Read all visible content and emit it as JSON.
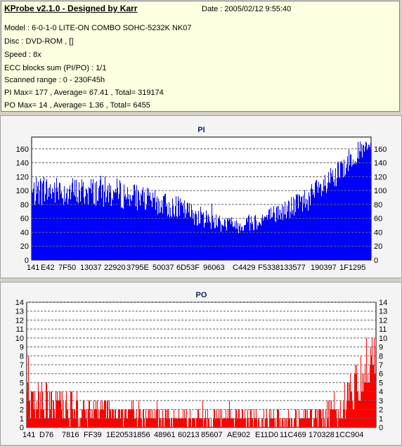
{
  "header": {
    "title": "KProbe v2.1.0 - Designed by Karr",
    "date": "Date : 2005/02/12 9:55:40",
    "lines": [
      "Model : 6-0-1-0 LITE-ON COMBO SOHC-5232K NK07",
      "Disc : DVD-ROM ,  []",
      "Speed : 8x",
      "ECC blocks sum (PI/PO) : 1/1",
      "Scanned range : 0 - 230F45h",
      "PI Max= 177 , Average= 67.41 , Total= 319174",
      "PO Max= 14 , Average= 1.36 , Total= 6455"
    ]
  },
  "colors": {
    "pi": "#0000ff",
    "po": "#ff0000",
    "grid": "#606060",
    "title": "#0a246a"
  },
  "chart_data": [
    {
      "type": "bar",
      "title": "PI",
      "ylim": [
        0,
        177
      ],
      "yticks": [
        0,
        20,
        40,
        60,
        80,
        100,
        120,
        140,
        160
      ],
      "xtick_labels": [
        "141",
        "E42",
        "7F50",
        "13037",
        "22920",
        "3795E",
        "50037",
        "6D53F",
        "96063",
        "C4429",
        "F5338",
        "133577",
        "190397",
        "1F1295"
      ],
      "profile_x": [
        0,
        0.02,
        0.05,
        0.1,
        0.15,
        0.2,
        0.25,
        0.3,
        0.35,
        0.4,
        0.45,
        0.5,
        0.55,
        0.6,
        0.65,
        0.7,
        0.75,
        0.8,
        0.85,
        0.9,
        0.93,
        0.96,
        1.0
      ],
      "profile_mean": [
        95,
        100,
        100,
        98,
        98,
        100,
        96,
        92,
        85,
        78,
        72,
        62,
        55,
        50,
        55,
        62,
        72,
        85,
        100,
        120,
        140,
        155,
        162
      ],
      "profile_spread": [
        20,
        22,
        22,
        22,
        22,
        22,
        22,
        20,
        18,
        18,
        16,
        15,
        14,
        12,
        14,
        15,
        16,
        18,
        20,
        20,
        18,
        15,
        12
      ],
      "max": 177,
      "average": 67.41,
      "total": 319174
    },
    {
      "type": "bar",
      "title": "PO",
      "ylim": [
        0,
        14
      ],
      "yticks": [
        0,
        1,
        2,
        3,
        4,
        5,
        6,
        7,
        8,
        9,
        10,
        11,
        12,
        13,
        14
      ],
      "xtick_labels": [
        "141",
        "D76",
        "7816",
        "FF39",
        "1E205",
        "31856",
        "48961",
        "60213",
        "85607",
        "AE902",
        "E11D0",
        "11C469",
        "170328",
        "1CC904"
      ],
      "profile_x": [
        0,
        0.05,
        0.1,
        0.15,
        0.2,
        0.3,
        0.4,
        0.5,
        0.6,
        0.7,
        0.8,
        0.85,
        0.9,
        0.93,
        0.96,
        1.0
      ],
      "profile_mean": [
        3,
        3,
        2.5,
        2,
        2,
        1.5,
        1.2,
        1,
        1,
        1,
        1.2,
        1.5,
        2.5,
        4,
        6,
        8
      ],
      "profile_spread": [
        2.5,
        2.5,
        2,
        2,
        1.5,
        1.2,
        1,
        1,
        1,
        1,
        1,
        1.5,
        2,
        2.5,
        3,
        3
      ],
      "max": 14,
      "average": 1.36,
      "total": 6455
    }
  ]
}
